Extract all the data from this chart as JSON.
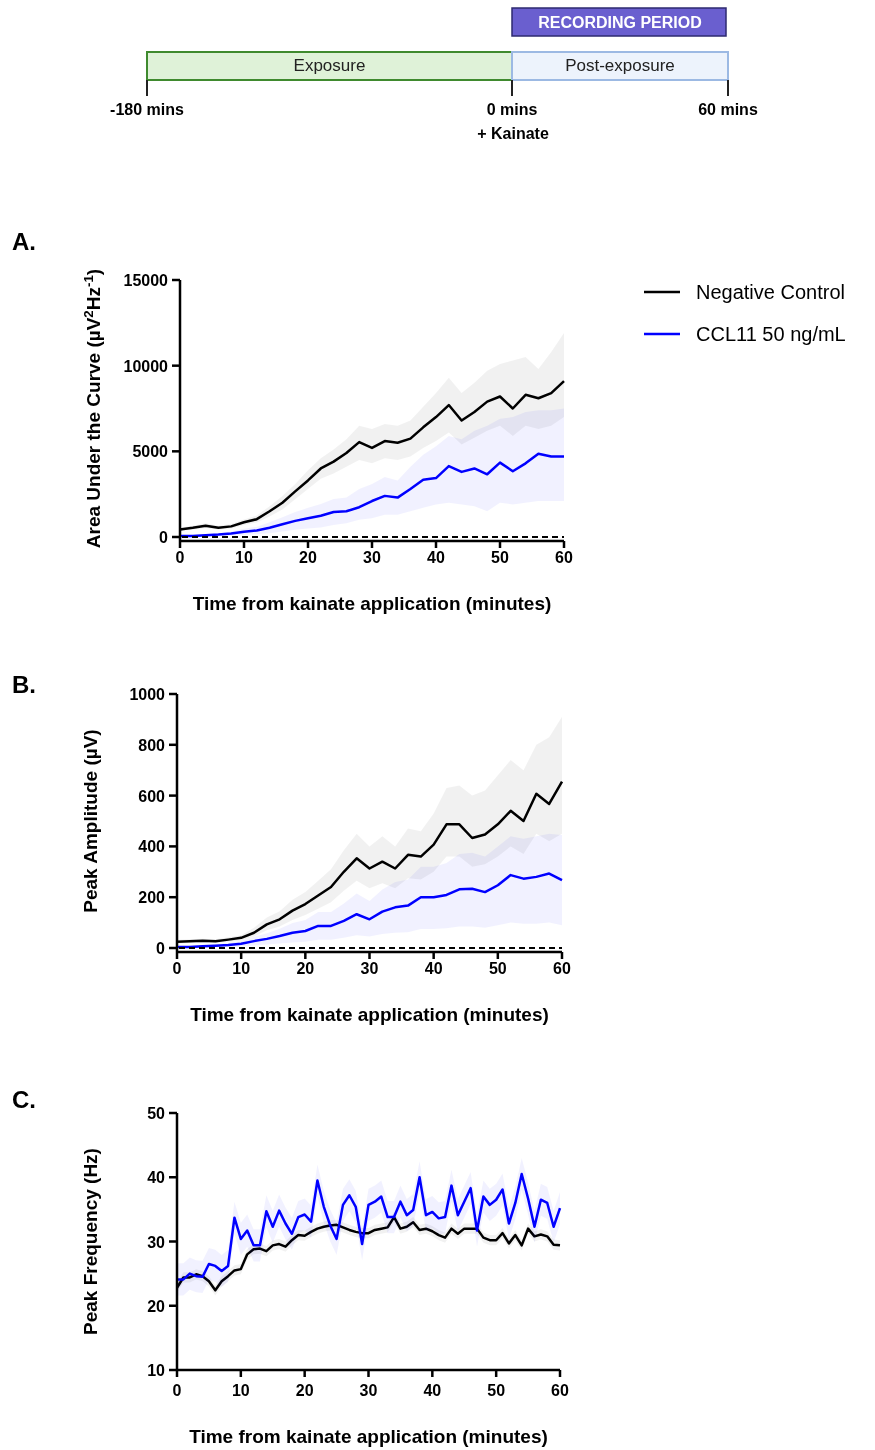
{
  "chart_data": [
    {
      "type": "other",
      "annotations": [
        "RECORDING PERIOD",
        "Exposure",
        "Post-exposure",
        "-180 mins",
        "0 mins",
        "+ Kainate",
        "60 mins"
      ]
    },
    {
      "type": "line",
      "title": "A.",
      "xlabel": "Time from kainate application (minutes)",
      "ylabel": "Area Under the Curve (µV$^{2}$Hz$^{-1}$)",
      "xlim": [
        0,
        60
      ],
      "xticks": [
        0,
        10,
        20,
        30,
        40,
        50,
        60
      ],
      "ylim": [
        0,
        15000
      ],
      "yticks": [
        0,
        5000,
        10000,
        15000
      ],
      "legend": "top right",
      "grid": false,
      "ref_lines": [
        {
          "axis": "y",
          "value": 0,
          "line_style": "dashed"
        }
      ],
      "x": [
        0,
        2,
        4,
        6,
        8,
        10,
        12,
        14,
        16,
        18,
        20,
        22,
        24,
        26,
        28,
        30,
        32,
        34,
        36,
        38,
        40,
        42,
        44,
        46,
        48,
        50,
        52,
        54,
        56,
        58,
        60
      ],
      "series": [
        {
          "name": "Negative Control",
          "color": "#000000",
          "values": [
            440,
            540,
            660,
            540,
            620,
            860,
            1040,
            1500,
            2000,
            2660,
            3300,
            4000,
            4400,
            4900,
            5540,
            5200,
            5600,
            5500,
            5740,
            6400,
            7000,
            7700,
            6800,
            7300,
            7900,
            8200,
            7500,
            8300,
            8100,
            8400,
            9100
          ],
          "lower": [
            360,
            420,
            520,
            440,
            500,
            700,
            850,
            1200,
            1600,
            2200,
            2800,
            3400,
            3700,
            4100,
            4500,
            4300,
            4600,
            4500,
            4700,
            5200,
            5600,
            6100,
            5400,
            5800,
            6200,
            6500,
            5900,
            6500,
            6300,
            6500,
            7000
          ],
          "upper": [
            540,
            660,
            800,
            660,
            760,
            1020,
            1250,
            1800,
            2400,
            3100,
            3900,
            4600,
            5100,
            5700,
            6500,
            6300,
            6600,
            6500,
            6800,
            7600,
            8400,
            9300,
            8400,
            9000,
            9700,
            10100,
            10300,
            10500,
            9800,
            10800,
            11900
          ]
        },
        {
          "name": "CCL11 50 ng/mL",
          "color": "#0000ff",
          "values": [
            60,
            60,
            100,
            140,
            200,
            300,
            380,
            540,
            740,
            940,
            1100,
            1240,
            1460,
            1500,
            1740,
            2100,
            2400,
            2300,
            2800,
            3340,
            3440,
            4140,
            3800,
            4000,
            3660,
            4340,
            3840,
            4300,
            4860,
            4700,
            4700
          ],
          "lower": [
            20,
            20,
            40,
            60,
            80,
            120,
            160,
            220,
            320,
            420,
            500,
            560,
            700,
            800,
            1000,
            1100,
            1300,
            1300,
            1500,
            1700,
            1900,
            2000,
            1900,
            1800,
            1500,
            2000,
            1900,
            2000,
            2100,
            2100,
            2100
          ],
          "upper": [
            100,
            110,
            160,
            220,
            320,
            480,
            600,
            860,
            1160,
            1460,
            1700,
            1920,
            2220,
            2300,
            2800,
            3100,
            3500,
            3300,
            4100,
            4800,
            5300,
            5900,
            5700,
            6200,
            6500,
            6900,
            7000,
            7300,
            7400,
            7400,
            7500
          ]
        }
      ]
    },
    {
      "type": "line",
      "title": "B.",
      "xlabel": "Time from kainate application (minutes)",
      "ylabel": "Peak Amplitude  (µV)",
      "xlim": [
        0,
        60
      ],
      "xticks": [
        0,
        10,
        20,
        30,
        40,
        50,
        60
      ],
      "ylim": [
        0,
        1000
      ],
      "yticks": [
        0,
        200,
        400,
        600,
        800,
        1000
      ],
      "grid": false,
      "ref_lines": [
        {
          "axis": "y",
          "value": 0,
          "line_style": "dashed"
        }
      ],
      "x": [
        0,
        2,
        4,
        6,
        8,
        10,
        12,
        14,
        16,
        18,
        20,
        22,
        24,
        26,
        28,
        30,
        32,
        34,
        36,
        38,
        40,
        42,
        44,
        46,
        48,
        50,
        52,
        54,
        56,
        58,
        60
      ],
      "series": [
        {
          "color": "#000000",
          "values": [
            25,
            27,
            29,
            27,
            33,
            40,
            60,
            93,
            113,
            147,
            173,
            207,
            240,
            300,
            353,
            313,
            340,
            313,
            367,
            360,
            407,
            487,
            487,
            433,
            447,
            487,
            540,
            500,
            607,
            567,
            655
          ],
          "lower": [
            18,
            20,
            22,
            20,
            25,
            30,
            45,
            70,
            85,
            110,
            130,
            155,
            180,
            225,
            265,
            235,
            255,
            235,
            275,
            270,
            300,
            360,
            360,
            320,
            330,
            360,
            400,
            370,
            450,
            420,
            450
          ],
          "upper": [
            32,
            34,
            36,
            34,
            42,
            50,
            80,
            120,
            145,
            190,
            220,
            265,
            310,
            385,
            450,
            400,
            440,
            400,
            470,
            460,
            530,
            630,
            640,
            600,
            620,
            680,
            740,
            700,
            800,
            830,
            910
          ]
        },
        {
          "color": "#0000ff",
          "values": [
            4,
            4,
            7,
            9,
            12,
            17,
            27,
            36,
            47,
            60,
            67,
            87,
            87,
            107,
            133,
            113,
            143,
            160,
            167,
            200,
            200,
            209,
            231,
            233,
            220,
            247,
            287,
            273,
            280,
            293,
            267
          ],
          "lower": [
            1,
            1,
            2,
            3,
            4,
            6,
            10,
            14,
            18,
            22,
            25,
            32,
            32,
            40,
            50,
            45,
            55,
            60,
            62,
            75,
            75,
            78,
            85,
            85,
            80,
            90,
            100,
            95,
            95,
            100,
            90
          ],
          "upper": [
            7,
            7,
            12,
            15,
            20,
            28,
            44,
            58,
            76,
            98,
            110,
            142,
            142,
            175,
            215,
            185,
            230,
            260,
            270,
            320,
            320,
            335,
            370,
            375,
            360,
            400,
            440,
            430,
            440,
            450,
            445
          ]
        }
      ]
    },
    {
      "type": "line",
      "title": "C.",
      "xlabel": "Time from kainate application (minutes)",
      "ylabel": "Peak Frequency (Hz)",
      "xlim": [
        0,
        60
      ],
      "xticks": [
        0,
        10,
        20,
        30,
        40,
        50,
        60
      ],
      "ylim": [
        10,
        50
      ],
      "yticks": [
        10,
        20,
        30,
        40,
        50
      ],
      "grid": false,
      "x": [
        0,
        1,
        2,
        3,
        4,
        5,
        6,
        7,
        8,
        9,
        10,
        11,
        12,
        13,
        14,
        15,
        16,
        17,
        18,
        19,
        20,
        21,
        22,
        23,
        24,
        25,
        26,
        27,
        28,
        29,
        30,
        31,
        32,
        33,
        34,
        35,
        36,
        37,
        38,
        39,
        40,
        41,
        42,
        43,
        44,
        45,
        46,
        47,
        48,
        49,
        50,
        51,
        52,
        53,
        54,
        55,
        56,
        57,
        58,
        59,
        60
      ],
      "series": [
        {
          "color": "#000000",
          "values": [
            22.8,
            24.4,
            24.4,
            24.9,
            24.6,
            23.8,
            22.4,
            23.8,
            24.6,
            25.5,
            25.7,
            28.0,
            28.8,
            28.9,
            28.5,
            29.4,
            29.6,
            29.2,
            30.2,
            31.0,
            30.9,
            31.5,
            32.0,
            32.3,
            32.5,
            32.6,
            32.2,
            31.8,
            31.5,
            31.3,
            31.3,
            31.8,
            32.0,
            32.2,
            33.8,
            32.0,
            32.3,
            33.0,
            31.8,
            32.0,
            31.6,
            31.0,
            30.6,
            32.0,
            31.2,
            32.0,
            32.0,
            32.0,
            30.6,
            30.2,
            30.2,
            31.3,
            29.7,
            31.0,
            29.4,
            32.0,
            30.8,
            31.1,
            30.8,
            29.5,
            29.4
          ],
          "lower": [
            22.0,
            23.6,
            23.6,
            24.1,
            23.8,
            23.0,
            21.6,
            23.0,
            23.8,
            24.7,
            24.9,
            27.2,
            28.0,
            28.1,
            27.7,
            28.6,
            28.8,
            28.4,
            29.4,
            30.2,
            30.1,
            30.7,
            31.2,
            31.5,
            31.7,
            31.8,
            31.4,
            31.0,
            30.7,
            30.5,
            30.5,
            31.0,
            31.2,
            31.4,
            33.0,
            31.2,
            31.5,
            32.2,
            31.0,
            31.2,
            30.8,
            30.2,
            29.8,
            31.2,
            30.4,
            31.2,
            31.2,
            31.2,
            29.8,
            29.4,
            29.4,
            30.5,
            28.9,
            30.2,
            28.6,
            31.2,
            30.0,
            30.3,
            30.0,
            28.7,
            28.6
          ],
          "upper": [
            23.6,
            25.2,
            25.2,
            25.7,
            25.4,
            24.6,
            23.2,
            24.6,
            25.4,
            26.3,
            26.5,
            28.8,
            29.6,
            29.7,
            29.3,
            30.2,
            30.4,
            30.0,
            31.0,
            31.8,
            31.7,
            32.3,
            32.8,
            33.1,
            33.3,
            33.4,
            33.0,
            32.6,
            32.3,
            32.1,
            32.1,
            32.6,
            32.8,
            33.0,
            34.6,
            32.8,
            33.1,
            33.8,
            32.6,
            32.8,
            32.4,
            31.8,
            31.4,
            32.8,
            32.0,
            32.8,
            32.8,
            32.8,
            31.4,
            31.0,
            31.0,
            32.1,
            30.5,
            31.8,
            30.2,
            32.8,
            31.6,
            31.9,
            31.6,
            30.3,
            30.2
          ]
        },
        {
          "color": "#0000ff",
          "values": [
            24.1,
            24.1,
            25.0,
            24.6,
            24.5,
            26.5,
            26.2,
            25.4,
            26.2,
            33.7,
            30.4,
            31.7,
            29.4,
            29.4,
            34.7,
            32.3,
            34.8,
            32.8,
            31.2,
            33.8,
            34.2,
            33.1,
            39.5,
            35.4,
            32.5,
            30.4,
            35.7,
            37.2,
            35.4,
            29.6,
            35.7,
            36.2,
            37.0,
            33.8,
            33.8,
            36.2,
            34.1,
            34.9,
            40.0,
            34.1,
            34.6,
            33.6,
            33.8,
            38.7,
            34.1,
            36.2,
            38.3,
            31.7,
            37.0,
            35.7,
            36.5,
            38.1,
            32.8,
            36.0,
            40.5,
            36.7,
            32.3,
            36.5,
            36.0,
            32.3,
            35.2
          ],
          "lower": [
            21.6,
            21.6,
            22.5,
            22.1,
            22.0,
            24.0,
            23.7,
            22.9,
            23.7,
            31.2,
            27.9,
            29.2,
            26.9,
            26.9,
            32.2,
            29.8,
            32.3,
            30.3,
            28.7,
            31.3,
            31.7,
            30.6,
            37.0,
            32.9,
            30.0,
            27.9,
            33.2,
            34.7,
            32.9,
            27.1,
            33.2,
            33.7,
            34.5,
            31.3,
            31.3,
            33.7,
            31.6,
            32.4,
            37.5,
            31.6,
            32.1,
            31.1,
            31.3,
            36.2,
            31.6,
            33.7,
            35.8,
            29.2,
            34.5,
            33.2,
            34.0,
            35.6,
            30.3,
            33.5,
            38.0,
            34.2,
            29.8,
            34.0,
            33.5,
            29.8,
            32.7
          ],
          "upper": [
            26.6,
            26.6,
            27.5,
            27.1,
            27.0,
            29.0,
            28.7,
            27.9,
            28.7,
            36.2,
            32.9,
            34.2,
            31.9,
            31.9,
            37.2,
            34.8,
            37.3,
            35.3,
            33.7,
            36.3,
            36.7,
            35.6,
            42.0,
            37.9,
            35.0,
            32.9,
            38.2,
            39.7,
            37.9,
            32.1,
            38.2,
            38.7,
            39.5,
            36.3,
            36.3,
            38.7,
            36.6,
            37.4,
            42.5,
            36.6,
            37.1,
            36.1,
            36.3,
            41.2,
            36.6,
            38.7,
            40.8,
            34.2,
            39.5,
            38.2,
            39.0,
            40.6,
            35.3,
            38.5,
            43.0,
            39.2,
            34.8,
            39.0,
            38.5,
            34.8,
            37.7
          ]
        }
      ]
    }
  ]
}
